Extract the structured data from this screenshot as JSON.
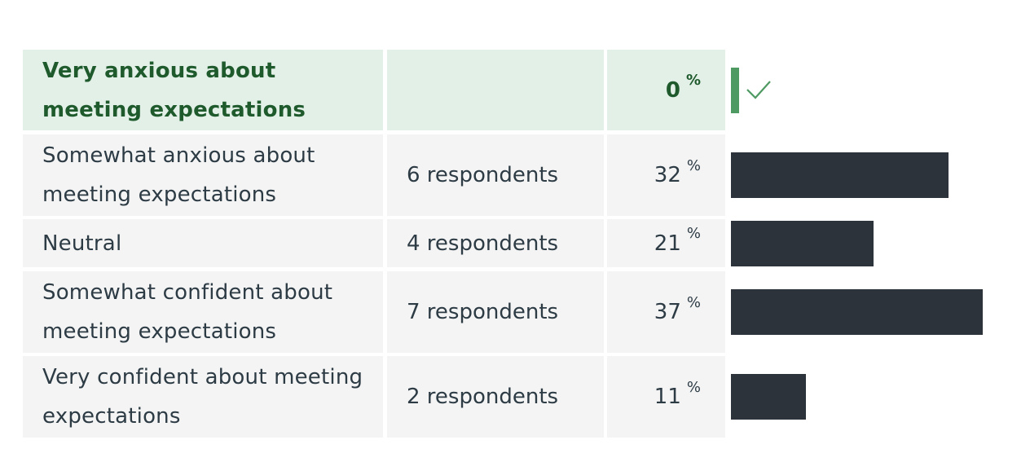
{
  "answers": [
    {
      "label": "Very anxious about meeting expectations",
      "respondents": "",
      "percent": "0",
      "correct": true
    },
    {
      "label": "Somewhat anxious about meeting expectations",
      "respondents": "6 respondents",
      "percent": "32",
      "correct": false
    },
    {
      "label": "Neutral",
      "respondents": "4 respondents",
      "percent": "21",
      "correct": false
    },
    {
      "label": "Somewhat confident about meeting expectations",
      "respondents": "7 respondents",
      "percent": "37",
      "correct": false
    },
    {
      "label": "Very confident about meeting expectations",
      "respondents": "2 respondents",
      "percent": "11",
      "correct": false
    }
  ],
  "percent_symbol": "%",
  "colors": {
    "row_bg": "#f4f4f4",
    "correct_bg": "#e3f0e8",
    "correct_text": "#1e5a2c",
    "text": "#2d3b45",
    "bar": "#2d333b",
    "correct_marker": "#4f9a63"
  },
  "icons": {
    "correct": "check-icon"
  }
}
